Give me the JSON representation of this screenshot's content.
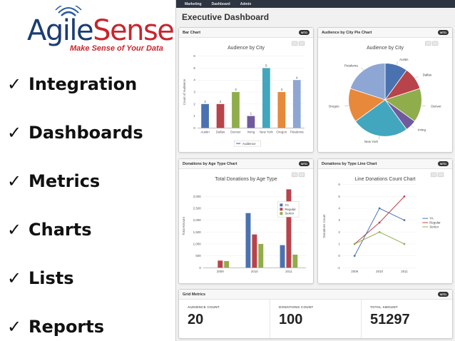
{
  "brand": {
    "name_part1": "Agile",
    "name_part2": "Sense",
    "tagline": "Make Sense of Your Data"
  },
  "features": [
    {
      "label": "Integration"
    },
    {
      "label": "Dashboards"
    },
    {
      "label": "Metrics"
    },
    {
      "label": "Charts"
    },
    {
      "label": "Lists"
    },
    {
      "label": "Reports"
    }
  ],
  "dashboard": {
    "nav": [
      "Marketing",
      "Dashboard",
      "Admin"
    ],
    "title": "Executive Dashboard",
    "badge": "WTD",
    "panels": {
      "bar": "Bar Chart",
      "pie": "Audience by City Pie Chart",
      "grouped": "Donations by Age Type Chart",
      "line": "Donations by Type Line Chart",
      "grid": "Grid Metrics"
    }
  },
  "grid_metrics": [
    {
      "label": "AUDIENCE COUNT",
      "value": "20"
    },
    {
      "label": "DONATIONS COUNT",
      "value": "100"
    },
    {
      "label": "TOTAL AMOUNT",
      "value": "51297"
    }
  ],
  "chart_data": [
    {
      "type": "bar",
      "title": "Audience by City",
      "ylabel": "Count of Audience",
      "categories": [
        "Austin",
        "Dallas",
        "Denver",
        "Irving",
        "New York",
        "Oregon",
        "Petaluma"
      ],
      "values": [
        2,
        2,
        3,
        1,
        5,
        3,
        4
      ],
      "colors": [
        "#4a72b0",
        "#b8434a",
        "#8fad4b",
        "#6f5a9e",
        "#42a6be",
        "#e8883a",
        "#8ea6d4"
      ],
      "ylim": [
        0,
        6
      ],
      "yticks": [
        0,
        1,
        2,
        3,
        4,
        5,
        6
      ],
      "legend": "Audience",
      "legend_position": "bottom"
    },
    {
      "type": "pie",
      "title": "Audience by City",
      "categories": [
        "Austin",
        "Dallas",
        "Denver",
        "Irving",
        "New York",
        "Oregon",
        "Petaluma"
      ],
      "values": [
        2,
        2,
        3,
        1,
        5,
        3,
        4
      ],
      "colors": [
        "#4a72b0",
        "#b8434a",
        "#8fad4b",
        "#6f5a9e",
        "#42a6be",
        "#e8883a",
        "#8ea6d4"
      ]
    },
    {
      "type": "bar",
      "title": "Total Donations by Age Type",
      "ylabel": "Total Amount",
      "categories": [
        "2009",
        "2010",
        "2011"
      ],
      "series": [
        {
          "name": "YA",
          "color": "#4a72b0",
          "values": [
            0,
            2300,
            950
          ]
        },
        {
          "name": "Regular",
          "color": "#b8434a",
          "values": [
            300,
            1400,
            3300
          ]
        },
        {
          "name": "Senior",
          "color": "#8fad4b",
          "values": [
            280,
            1000,
            550
          ]
        }
      ],
      "ylim": [
        0,
        3500
      ],
      "yticks": [
        0,
        500,
        1000,
        1500,
        2000,
        2500,
        3000
      ],
      "ytick_labels": [
        "0",
        "500",
        "1,000",
        "1,500",
        "2,000",
        "2,500",
        "3,000"
      ],
      "legend_position": "top-right"
    },
    {
      "type": "line",
      "title": "Line Donations Count Chart",
      "ylabel": "Donations Count",
      "categories": [
        "2009",
        "2010",
        "2011"
      ],
      "series": [
        {
          "name": "YA",
          "color": "#4a72b0",
          "values": [
            0,
            4,
            3
          ]
        },
        {
          "name": "Regular",
          "color": "#b8434a",
          "values": [
            1,
            2.8,
            5
          ]
        },
        {
          "name": "Senior",
          "color": "#8fad4b",
          "values": [
            1,
            2,
            1
          ]
        }
      ],
      "ylim": [
        -1,
        6
      ],
      "yticks": [
        -1,
        0,
        1,
        2,
        3,
        4,
        5,
        6
      ],
      "legend_position": "right"
    }
  ]
}
